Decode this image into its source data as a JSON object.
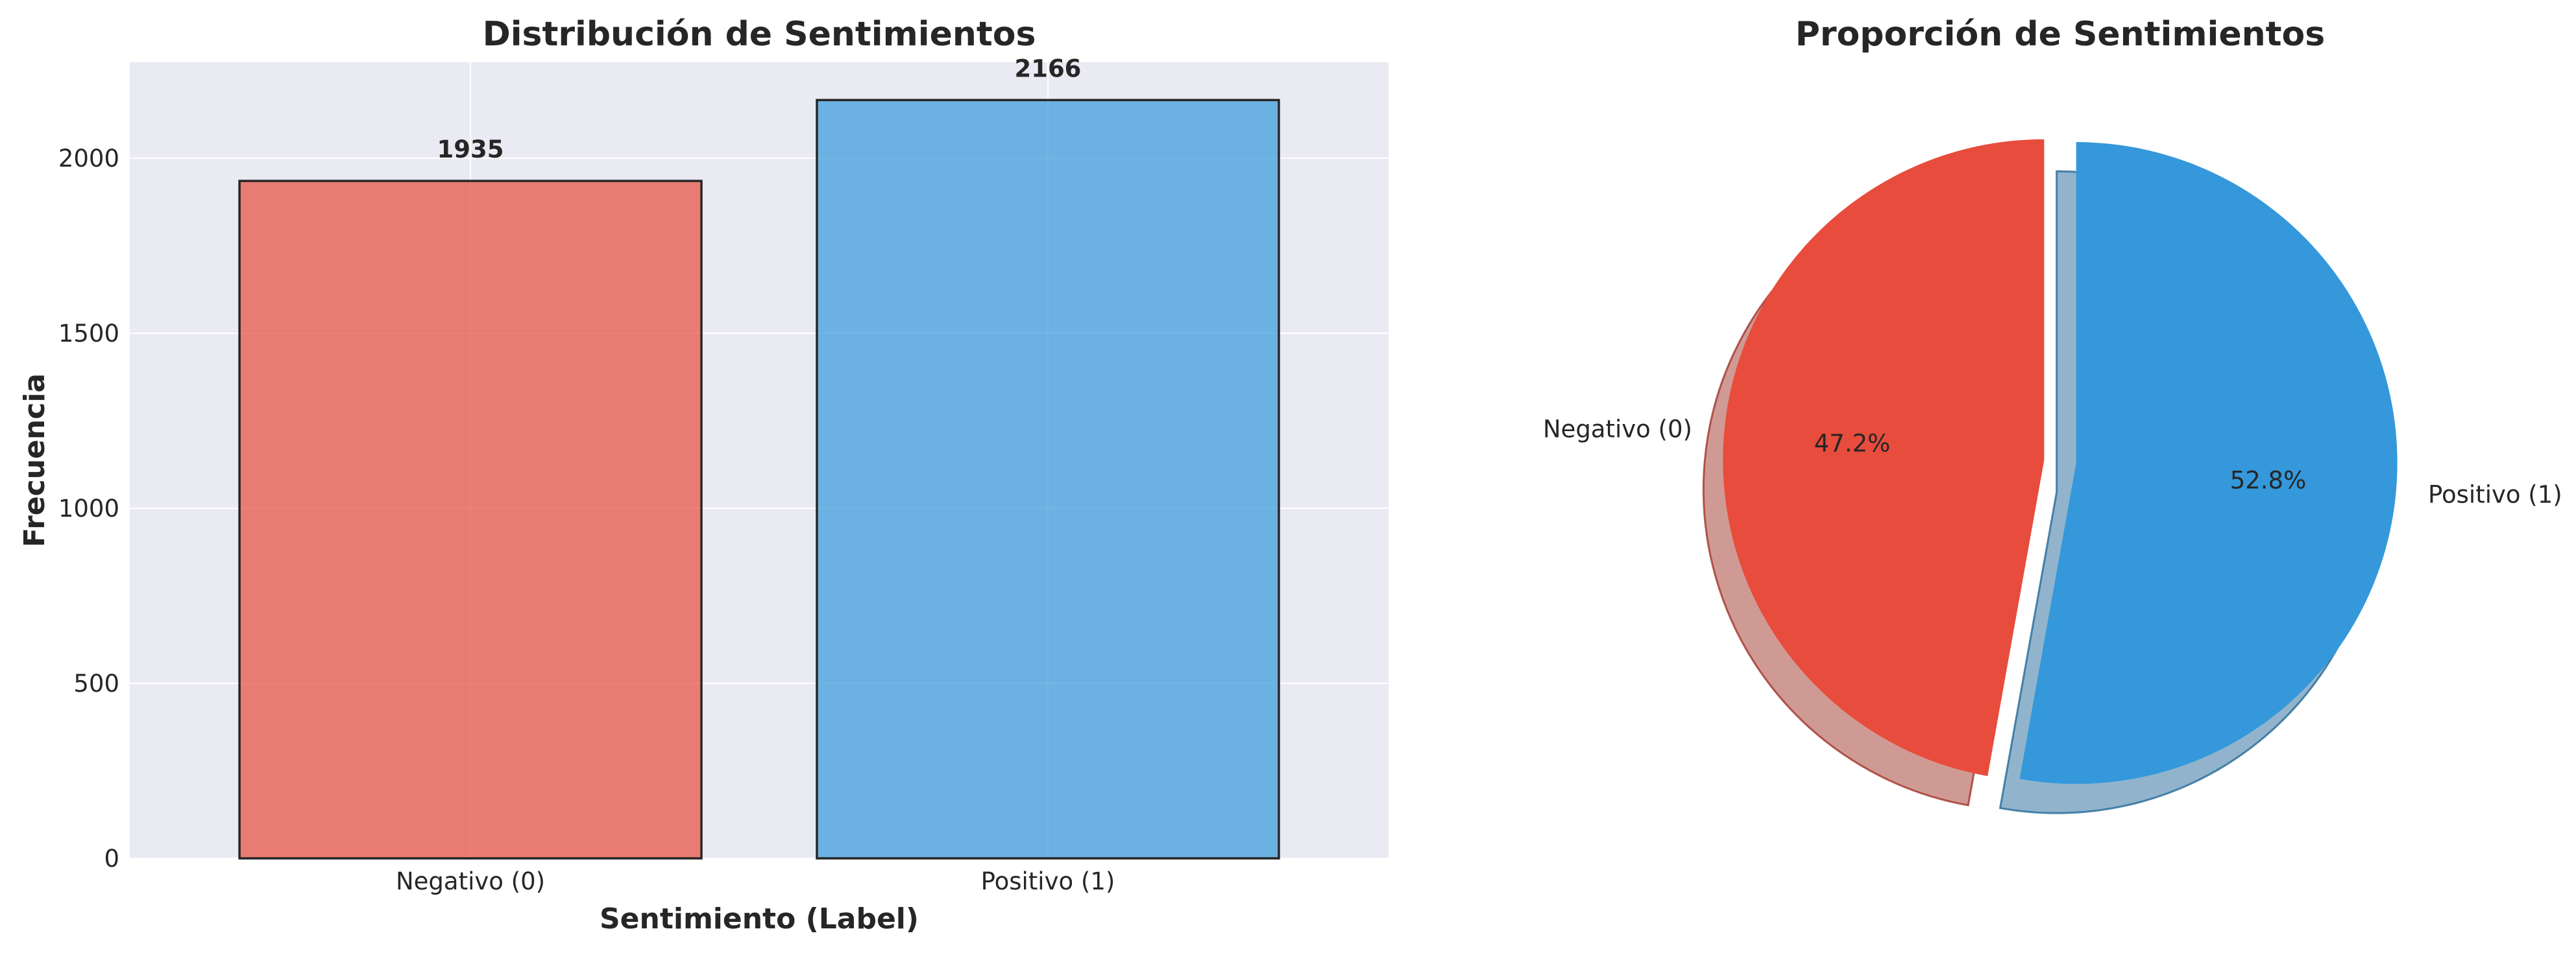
{
  "chart_data": [
    {
      "type": "bar",
      "title": "Distribución de Sentimientos",
      "xlabel": "Sentimiento (Label)",
      "ylabel": "Frecuencia",
      "categories": [
        "Negativo (0)",
        "Positivo (1)"
      ],
      "values": [
        1935,
        2166
      ],
      "value_labels": [
        "1935",
        "2166"
      ],
      "colors": [
        "#e74c3c",
        "#3498db"
      ],
      "ylim": [
        0,
        2274
      ],
      "yticks": [
        0,
        500,
        1000,
        1500,
        2000
      ],
      "ytick_labels": [
        "0",
        "500",
        "1000",
        "1500",
        "2000"
      ],
      "grid": true,
      "background": "#eaeaf2"
    },
    {
      "type": "pie",
      "title": "Proporción de Sentimientos",
      "labels": [
        "Negativo (0)",
        "Positivo (1)"
      ],
      "values": [
        1935,
        2166
      ],
      "percent_labels": [
        "47.2%",
        "52.8%"
      ],
      "colors": [
        "#e74c3c",
        "#3498db"
      ],
      "explode": [
        0.05,
        0.05
      ],
      "start_angle": 90,
      "shadow": true
    }
  ]
}
